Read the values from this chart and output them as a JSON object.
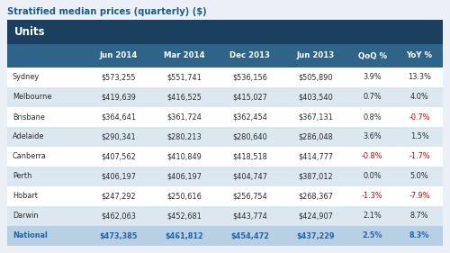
{
  "title": "Stratified median prices (quarterly) ($)",
  "section": "Units",
  "columns": [
    "",
    "Jun 2014",
    "Mar 2014",
    "Dec 2013",
    "Jun 2013",
    "QoQ %",
    "YoY %"
  ],
  "rows": [
    [
      "Sydney",
      "$573,255",
      "$551,741",
      "$536,156",
      "$505,890",
      "3.9%",
      "13.3%"
    ],
    [
      "Melbourne",
      "$419,639",
      "$416,525",
      "$415,027",
      "$403,540",
      "0.7%",
      "4.0%"
    ],
    [
      "Brisbane",
      "$364,641",
      "$361,724",
      "$362,454",
      "$367,131",
      "0.8%",
      "-0.7%"
    ],
    [
      "Adelaide",
      "$290,341",
      "$280,213",
      "$280,640",
      "$286,048",
      "3.6%",
      "1.5%"
    ],
    [
      "Canberra",
      "$407,562",
      "$410,849",
      "$418,518",
      "$414,777",
      "-0.8%",
      "-1.7%"
    ],
    [
      "Perth",
      "$406,197",
      "$406,197",
      "$404,747",
      "$387,012",
      "0.0%",
      "5.0%"
    ],
    [
      "Hobart",
      "$247,292",
      "$250,616",
      "$256,754",
      "$268,367",
      "-1.3%",
      "-7.9%"
    ],
    [
      "Darwin",
      "$462,063",
      "$452,681",
      "$443,774",
      "$424,907",
      "2.1%",
      "8.7%"
    ],
    [
      "National",
      "$473,385",
      "$461,812",
      "$454,472",
      "$437,229",
      "2.5%",
      "8.3%"
    ]
  ],
  "header_bg": "#2d6488",
  "section_bg": "#1b3f5e",
  "alt_row_bg": "#dce8f0",
  "white_row_bg": "#ffffff",
  "national_row_bg": "#b8d0e4",
  "title_color": "#1b5e8a",
  "header_text_color": "#ffffff",
  "section_text_color": "#ffffff",
  "normal_text_color": "#2a2a2a",
  "negative_color": "#cc0000",
  "national_text_color": "#2266aa",
  "background_color": "#eaf0f5"
}
